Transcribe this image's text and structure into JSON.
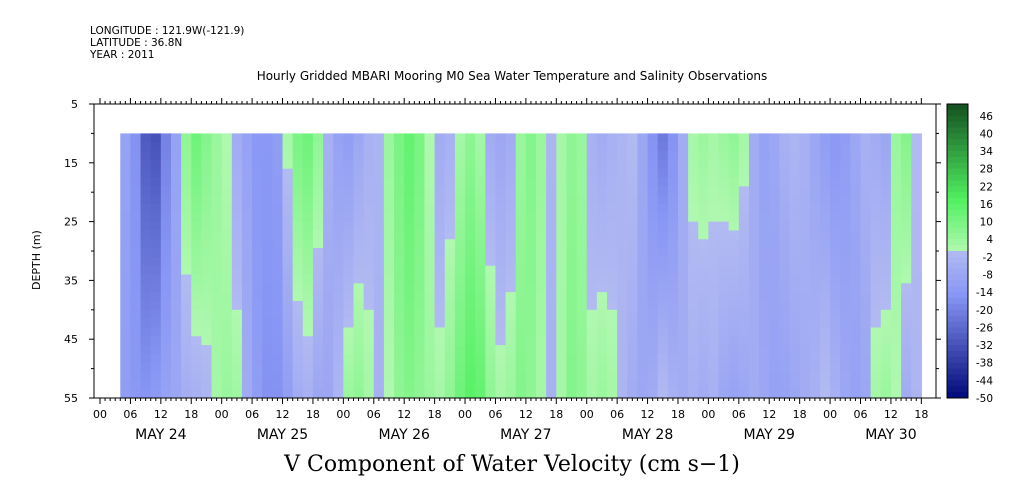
{
  "header": {
    "longitude": "LONGITUDE : 121.9W(-121.9)",
    "latitude": "LATITUDE : 36.8N",
    "year": "YEAR : 2011"
  },
  "chart_data": {
    "type": "heatmap",
    "title": "Hourly Gridded MBARI Mooring M0 Sea Water Temperature and Salinity Observations",
    "xlabel": "V Component of Water Velocity (cm s−1)",
    "ylabel": "DEPTH (m)",
    "x_day_labels": [
      "MAY 24",
      "MAY 25",
      "MAY 26",
      "MAY 27",
      "MAY 28",
      "MAY 29",
      "MAY 30"
    ],
    "x_hour_labels": [
      "00",
      "06",
      "12",
      "18"
    ],
    "x_hour_range": [
      0,
      162
    ],
    "y_ticks": [
      5,
      15,
      25,
      35,
      45,
      55
    ],
    "ylim": [
      5,
      55
    ],
    "data_depth_range": [
      10,
      55
    ],
    "data_hour_range": [
      4,
      160
    ],
    "colorbar": {
      "range": [
        -50,
        50
      ],
      "ticks": [
        46,
        40,
        34,
        28,
        22,
        16,
        10,
        4,
        -2,
        -8,
        -14,
        -20,
        -26,
        -32,
        -38,
        -44,
        -50
      ]
    },
    "columns": [
      {
        "hour": 4,
        "top": -10,
        "bottom": -12
      },
      {
        "hour": 6,
        "top": -16,
        "bottom": -14
      },
      {
        "hour": 8,
        "top": -30,
        "bottom": -15
      },
      {
        "hour": 10,
        "top": -32,
        "bottom": -13
      },
      {
        "hour": 12,
        "top": -20,
        "bottom": -10
      },
      {
        "hour": 14,
        "top": -10,
        "bottom": -8
      },
      {
        "hour": 16,
        "top": 6,
        "bottom": -5
      },
      {
        "hour": 18,
        "top": 12,
        "bottom": -4
      },
      {
        "hour": 20,
        "top": 8,
        "bottom": -2
      },
      {
        "hour": 22,
        "top": 4,
        "bottom": 2
      },
      {
        "hour": 24,
        "top": 0,
        "bottom": 4
      },
      {
        "hour": 26,
        "top": -6,
        "bottom": 3
      },
      {
        "hour": 28,
        "top": -10,
        "bottom": -6
      },
      {
        "hour": 30,
        "top": -14,
        "bottom": -12
      },
      {
        "hour": 32,
        "top": -14,
        "bottom": -16
      },
      {
        "hour": 34,
        "top": -12,
        "bottom": -16
      },
      {
        "hour": 36,
        "top": 2,
        "bottom": -12
      },
      {
        "hour": 38,
        "top": 10,
        "bottom": -6
      },
      {
        "hour": 40,
        "top": 12,
        "bottom": -4
      },
      {
        "hour": 42,
        "top": 6,
        "bottom": -8
      },
      {
        "hour": 44,
        "top": -4,
        "bottom": -8
      },
      {
        "hour": 46,
        "top": -10,
        "bottom": -2
      },
      {
        "hour": 48,
        "top": -12,
        "bottom": 4
      },
      {
        "hour": 50,
        "top": -8,
        "bottom": 6
      },
      {
        "hour": 52,
        "top": -4,
        "bottom": 2
      },
      {
        "hour": 54,
        "top": -2,
        "bottom": -4
      },
      {
        "hour": 56,
        "top": 4,
        "bottom": 0
      },
      {
        "hour": 58,
        "top": 10,
        "bottom": 6
      },
      {
        "hour": 60,
        "top": 14,
        "bottom": 8
      },
      {
        "hour": 62,
        "top": 10,
        "bottom": 6
      },
      {
        "hour": 64,
        "top": 0,
        "bottom": 4
      },
      {
        "hour": 66,
        "top": -6,
        "bottom": 2
      },
      {
        "hour": 68,
        "top": -4,
        "bottom": 6
      },
      {
        "hour": 70,
        "top": 2,
        "bottom": 12
      },
      {
        "hour": 72,
        "top": 6,
        "bottom": 16
      },
      {
        "hour": 74,
        "top": 2,
        "bottom": 14
      },
      {
        "hour": 76,
        "top": -6,
        "bottom": 6
      },
      {
        "hour": 78,
        "top": -8,
        "bottom": 2
      },
      {
        "hour": 80,
        "top": -6,
        "bottom": 4
      },
      {
        "hour": 82,
        "top": 4,
        "bottom": 8
      },
      {
        "hour": 84,
        "top": 8,
        "bottom": 6
      },
      {
        "hour": 86,
        "top": 4,
        "bottom": 2
      },
      {
        "hour": 88,
        "top": -2,
        "bottom": -4
      },
      {
        "hour": 90,
        "top": 2,
        "bottom": 2
      },
      {
        "hour": 92,
        "top": 6,
        "bottom": 8
      },
      {
        "hour": 94,
        "top": 4,
        "bottom": 6
      },
      {
        "hour": 96,
        "top": -4,
        "bottom": 2
      },
      {
        "hour": 98,
        "top": -6,
        "bottom": 4
      },
      {
        "hour": 100,
        "top": -4,
        "bottom": 2
      },
      {
        "hour": 102,
        "top": -2,
        "bottom": -2
      },
      {
        "hour": 104,
        "top": 0,
        "bottom": -6
      },
      {
        "hour": 106,
        "top": -8,
        "bottom": -8
      },
      {
        "hour": 108,
        "top": -16,
        "bottom": -6
      },
      {
        "hour": 110,
        "top": -22,
        "bottom": 0
      },
      {
        "hour": 112,
        "top": -16,
        "bottom": -4
      },
      {
        "hour": 114,
        "top": -6,
        "bottom": -6
      },
      {
        "hour": 116,
        "top": 2,
        "bottom": -4
      },
      {
        "hour": 118,
        "top": 4,
        "bottom": -6
      },
      {
        "hour": 120,
        "top": 2,
        "bottom": -4
      },
      {
        "hour": 122,
        "top": 4,
        "bottom": -8
      },
      {
        "hour": 124,
        "top": 6,
        "bottom": -10
      },
      {
        "hour": 126,
        "top": 2,
        "bottom": -8
      },
      {
        "hour": 128,
        "top": -6,
        "bottom": -6
      },
      {
        "hour": 130,
        "top": -10,
        "bottom": -8
      },
      {
        "hour": 132,
        "top": -8,
        "bottom": -10
      },
      {
        "hour": 134,
        "top": -4,
        "bottom": -10
      },
      {
        "hour": 136,
        "top": -2,
        "bottom": -8
      },
      {
        "hour": 138,
        "top": -4,
        "bottom": -6
      },
      {
        "hour": 140,
        "top": -8,
        "bottom": -4
      },
      {
        "hour": 142,
        "top": -12,
        "bottom": 0
      },
      {
        "hour": 144,
        "top": -14,
        "bottom": -4
      },
      {
        "hour": 146,
        "top": -12,
        "bottom": -8
      },
      {
        "hour": 148,
        "top": -8,
        "bottom": -10
      },
      {
        "hour": 150,
        "top": -4,
        "bottom": -8
      },
      {
        "hour": 152,
        "top": -6,
        "bottom": 2
      },
      {
        "hour": 154,
        "top": -8,
        "bottom": 4
      },
      {
        "hour": 156,
        "top": 4,
        "bottom": 0
      },
      {
        "hour": 158,
        "top": 8,
        "bottom": -6
      },
      {
        "hour": 160,
        "top": 0,
        "bottom": -2
      }
    ]
  }
}
